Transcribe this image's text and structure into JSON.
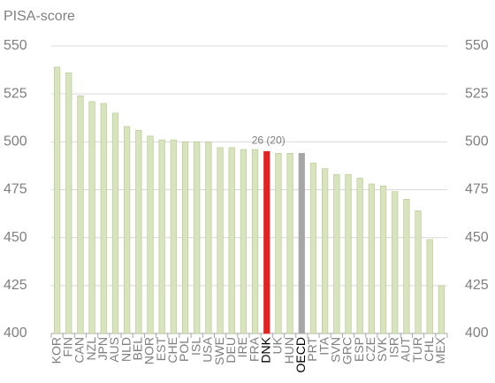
{
  "chart_data": {
    "type": "bar",
    "y_label": "PISA-score",
    "categories": [
      "KOR",
      "FIN",
      "CAN",
      "NZL",
      "JPN",
      "AUS",
      "NLD",
      "BEL",
      "NOR",
      "EST",
      "CHE",
      "POL",
      "ISL",
      "USA",
      "SWE",
      "DEU",
      "IRE",
      "FRA",
      "DNK",
      "UK",
      "HUN",
      "OECD",
      "PRT",
      "ITA",
      "SVN",
      "GRC",
      "ESP",
      "CZE",
      "SVK",
      "ISR",
      "AUT",
      "TUR",
      "CHL",
      "MEX"
    ],
    "values": [
      539,
      536,
      524,
      521,
      520,
      515,
      508,
      506,
      503,
      501,
      501,
      500,
      500,
      500,
      497,
      497,
      496,
      496,
      495,
      494,
      494,
      494,
      489,
      486,
      483,
      483,
      481,
      478,
      477,
      474,
      470,
      464,
      449,
      425
    ],
    "color": "#d7e4bd",
    "highlight_colors": {
      "DNK": "#e32222",
      "OECD": "#a6a6a6"
    },
    "annotation": {
      "category": "DNK",
      "text": "26 (20)"
    },
    "ylim": [
      400,
      550
    ],
    "yticks": [
      400,
      425,
      450,
      475,
      500,
      525,
      550
    ],
    "y2lim": [
      400,
      550
    ],
    "y2ticks": [
      400,
      425,
      450,
      475,
      500,
      525,
      550
    ],
    "grid": true
  }
}
